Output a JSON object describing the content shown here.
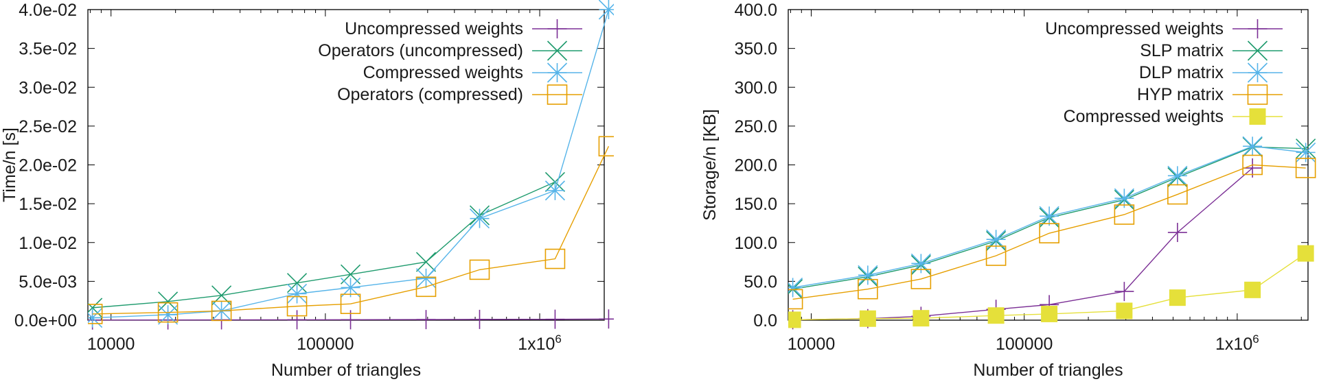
{
  "chart_data": [
    {
      "type": "line",
      "x_scale": "log",
      "xlim": [
        7800,
        2000000
      ],
      "ylim": [
        0,
        0.04
      ],
      "xlabel": "Number of triangles",
      "ylabel": "Time/n [s]",
      "x_ticks": [
        {
          "value": 10000,
          "label": "10000"
        },
        {
          "value": 100000,
          "label": "100000"
        },
        {
          "value": 1000000,
          "label": "1x10",
          "sup": "6"
        }
      ],
      "y_ticks": [
        {
          "value": 0.0,
          "label": "0.0e+00"
        },
        {
          "value": 0.005,
          "label": "5.0e-03"
        },
        {
          "value": 0.01,
          "label": "1.0e-02"
        },
        {
          "value": 0.015,
          "label": "1.5e-02"
        },
        {
          "value": 0.02,
          "label": "2.0e-02"
        },
        {
          "value": 0.025,
          "label": "2.5e-02"
        },
        {
          "value": 0.03,
          "label": "3.0e-02"
        },
        {
          "value": 0.035,
          "label": "3.5e-02"
        },
        {
          "value": 0.04,
          "label": "4.0e-02"
        }
      ],
      "legend_position": "top-right",
      "series": [
        {
          "name": "Uncompressed weights",
          "color": "#7b2f95",
          "marker": "plus",
          "x": [
            8192,
            18432,
            32768,
            73728,
            131072,
            294912,
            524288,
            1179648,
            2097152
          ],
          "y": [
            2e-05,
            3e-05,
            4e-05,
            5e-05,
            6e-05,
            8e-05,
            0.0001,
            0.00012,
            0.00015
          ]
        },
        {
          "name": "Operators (uncompressed)",
          "color": "#1f9b6e",
          "marker": "x",
          "x": [
            8192,
            18432,
            32768,
            73728,
            131072,
            294912,
            524288,
            1179648
          ],
          "y": [
            0.0016,
            0.0024,
            0.0032,
            0.0048,
            0.0059,
            0.0075,
            0.0135,
            0.0178
          ]
        },
        {
          "name": "Compressed weights",
          "color": "#56b4e9",
          "marker": "star",
          "x": [
            8192,
            18432,
            32768,
            73728,
            131072,
            294912,
            524288,
            1179648,
            2097152
          ],
          "y": [
            0.0003,
            0.0007,
            0.0012,
            0.0034,
            0.0042,
            0.0054,
            0.0131,
            0.0167,
            0.04
          ]
        },
        {
          "name": "Operators (compressed)",
          "color": "#e69f00",
          "marker": "square",
          "x": [
            8192,
            18432,
            32768,
            73728,
            131072,
            294912,
            524288,
            1179648,
            2097152
          ],
          "y": [
            0.0008,
            0.001,
            0.0012,
            0.0018,
            0.0021,
            0.0043,
            0.0065,
            0.0079,
            0.0224
          ]
        }
      ]
    },
    {
      "type": "line",
      "x_scale": "log",
      "xlim": [
        7800,
        2150000
      ],
      "ylim": [
        0,
        400
      ],
      "xlabel": "Number of triangles",
      "ylabel": "Storage/n [KB]",
      "x_ticks": [
        {
          "value": 10000,
          "label": "10000"
        },
        {
          "value": 100000,
          "label": "100000"
        },
        {
          "value": 1000000,
          "label": "1x10",
          "sup": "6"
        }
      ],
      "y_ticks": [
        {
          "value": 0,
          "label": "0.0"
        },
        {
          "value": 50,
          "label": "50.0"
        },
        {
          "value": 100,
          "label": "100.0"
        },
        {
          "value": 150,
          "label": "150.0"
        },
        {
          "value": 200,
          "label": "200.0"
        },
        {
          "value": 250,
          "label": "250.0"
        },
        {
          "value": 300,
          "label": "300.0"
        },
        {
          "value": 350,
          "label": "350.0"
        },
        {
          "value": 400,
          "label": "400.0"
        }
      ],
      "legend_position": "top-right",
      "series": [
        {
          "name": "Uncompressed weights",
          "color": "#7b2f95",
          "marker": "plus",
          "x": [
            8192,
            18432,
            32768,
            73728,
            131072,
            294912,
            524288,
            1179648
          ],
          "y": [
            0.5,
            2,
            5,
            14,
            20,
            37,
            113,
            196
          ]
        },
        {
          "name": "SLP matrix",
          "color": "#1f9b6e",
          "marker": "x",
          "x": [
            8192,
            18432,
            32768,
            73728,
            131072,
            294912,
            524288,
            1179648,
            2097152
          ],
          "y": [
            40,
            56,
            71,
            102,
            132,
            155,
            184,
            223,
            221
          ]
        },
        {
          "name": "DLP matrix",
          "color": "#56b4e9",
          "marker": "star",
          "x": [
            8192,
            18432,
            32768,
            73728,
            131072,
            294912,
            524288,
            1179648,
            2097152
          ],
          "y": [
            42,
            58,
            73,
            104,
            134,
            157,
            186,
            224,
            216
          ]
        },
        {
          "name": "HYP matrix",
          "color": "#e69f00",
          "marker": "square",
          "x": [
            8192,
            18432,
            32768,
            73728,
            131072,
            294912,
            524288,
            1179648,
            2097152
          ],
          "y": [
            27,
            40,
            53,
            83,
            112,
            136,
            162,
            200,
            196
          ]
        },
        {
          "name": "Compressed weights",
          "color": "#e5e03a",
          "marker": "filled-square",
          "x": [
            8192,
            18432,
            32768,
            73728,
            131072,
            294912,
            524288,
            1179648,
            2097152
          ],
          "y": [
            0.5,
            2,
            2.5,
            6,
            8,
            12,
            29,
            39,
            86
          ]
        }
      ]
    }
  ]
}
